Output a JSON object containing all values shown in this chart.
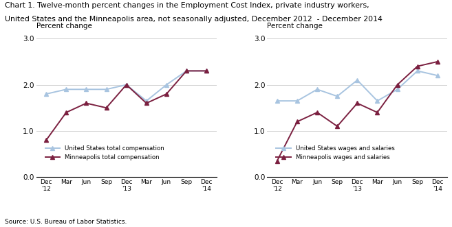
{
  "title_line1": "Chart 1. Twelve-month percent changes in the Employment Cost Index, private industry workers,",
  "title_line2": "United States and the Minneapolis area, not seasonally adjusted, December 2012  - December 2014",
  "source": "Source: U.S. Bureau of Labor Statistics.",
  "x_labels": [
    "Dec\n'12",
    "Mar",
    "Jun",
    "Sep",
    "Dec\n'13",
    "Mar",
    "Jun",
    "Sep",
    "Dec\n'14"
  ],
  "chart1": {
    "us_total": [
      1.8,
      1.9,
      1.9,
      1.9,
      2.0,
      1.65,
      2.0,
      2.3,
      2.3
    ],
    "mpls_total": [
      0.8,
      1.4,
      1.6,
      1.5,
      2.0,
      1.6,
      1.8,
      2.3,
      2.3
    ],
    "ylabel": "Percent change",
    "ylim": [
      0.0,
      3.0
    ],
    "yticks": [
      0.0,
      1.0,
      2.0,
      3.0
    ],
    "legend1": "United States total compensation",
    "legend2": "Minneapolis total compensation"
  },
  "chart2": {
    "us_wages": [
      1.65,
      1.65,
      1.9,
      1.75,
      2.1,
      1.65,
      1.9,
      2.3,
      2.2
    ],
    "mpls_wages": [
      0.35,
      1.2,
      1.4,
      1.1,
      1.6,
      1.4,
      2.0,
      2.4,
      2.5
    ],
    "ylabel": "Percent change",
    "ylim": [
      0.0,
      3.0
    ],
    "yticks": [
      0.0,
      1.0,
      2.0,
      3.0
    ],
    "legend1": "United States wages and salaries",
    "legend2": "Minneapolis wages and salaries"
  },
  "us_color": "#a8c4e0",
  "mpls_color": "#7b2040",
  "line_width": 1.4,
  "marker": "^",
  "marker_size": 4
}
